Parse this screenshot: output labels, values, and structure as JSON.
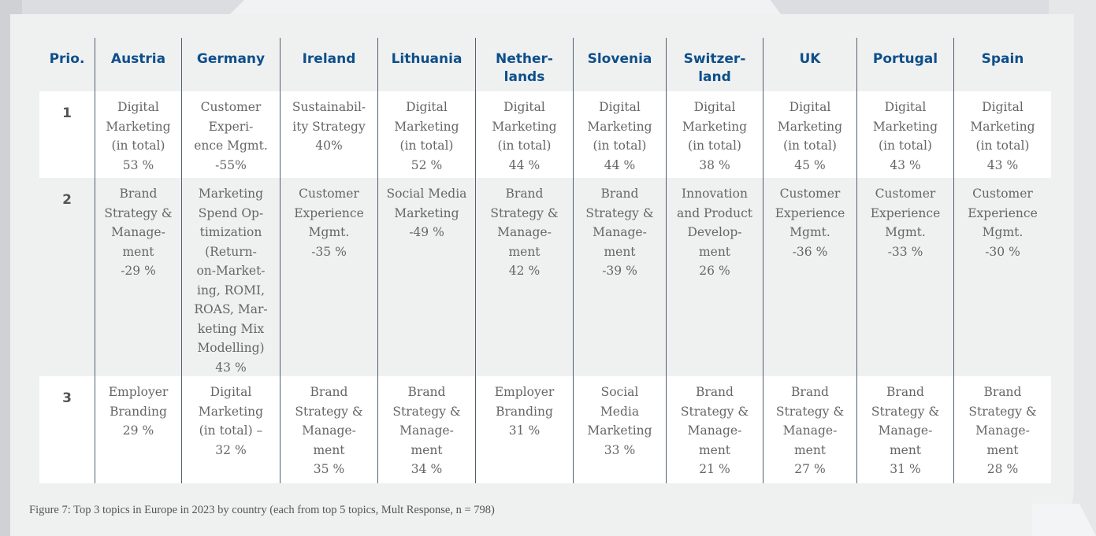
{
  "table": {
    "prio_header": "Prio.",
    "countries": [
      "Austria",
      "Germany",
      "Ireland",
      "Lithuania",
      "Nether-\nlands",
      "Slovenia",
      "Switzer-\nland",
      "UK",
      "Portugal",
      "Spain"
    ],
    "rows": [
      {
        "prio": "1",
        "cells": [
          "Digital\nMarketing\n(in total)\n53 %",
          "Customer\nExperi-\nence Mgmt.\n-55%",
          "Sustainabil-\nity Strategy\n40%",
          "Digital\nMarketing\n(in total)\n52 %",
          "Digital\nMarketing\n(in total)\n44 %",
          "Digital\nMarketing\n(in total)\n44 %",
          "Digital\nMarketing\n(in total)\n38 %",
          "Digital\nMarketing\n(in total)\n45 %",
          "Digital\nMarketing\n(in total)\n43 %",
          "Digital\nMarketing\n(in total)\n43 %"
        ]
      },
      {
        "prio": "2",
        "cells": [
          "Brand\nStrategy &\nManage-\nment\n-29 %",
          "Marketing\nSpend Op-\ntimization\n(Return-\non-Market-\ning, ROMI,\nROAS, Mar-\nketing Mix\nModelling)\n43 %",
          "Customer\nExperience\nMgmt.\n-35 %",
          "Social Media\nMarketing\n-49 %",
          "Brand\nStrategy &\nManage-\nment\n42 %",
          "Brand\nStrategy &\nManage-\nment\n-39 %",
          "Innovation\nand Product\nDevelop-\nment\n26 %",
          "Customer\nExperience\nMgmt.\n-36 %",
          "Customer\nExperience\nMgmt.\n-33 %",
          "Customer\nExperience\nMgmt.\n-30 %"
        ]
      },
      {
        "prio": "3",
        "cells": [
          "Employer\nBranding\n29 %",
          "Digital\nMarketing\n(in total) –\n32 %",
          "Brand\nStrategy &\nManage-\nment\n35 %",
          "Brand\nStrategy &\nManage-\nment\n34 %",
          "Employer\nBranding\n31 %",
          "Social\nMedia\nMarketing\n33 %",
          "Brand\nStrategy &\nManage-\nment\n21 %",
          "Brand\nStrategy &\nManage-\nment\n27 %",
          "Brand\nStrategy &\nManage-\nment\n31 %",
          "Brand\nStrategy &\nManage-\nment\n28 %"
        ]
      }
    ]
  },
  "caption": "Figure 7: Top 3 topics in Europe in 2023 by country (each from top 5 topics, Mult Response, n = 798)",
  "colors": {
    "header_text": "#0d4f8b",
    "body_text": "#666666",
    "divider": "#4f6172",
    "panel_bg": "#eff0f0",
    "row_white": "#ffffff"
  }
}
